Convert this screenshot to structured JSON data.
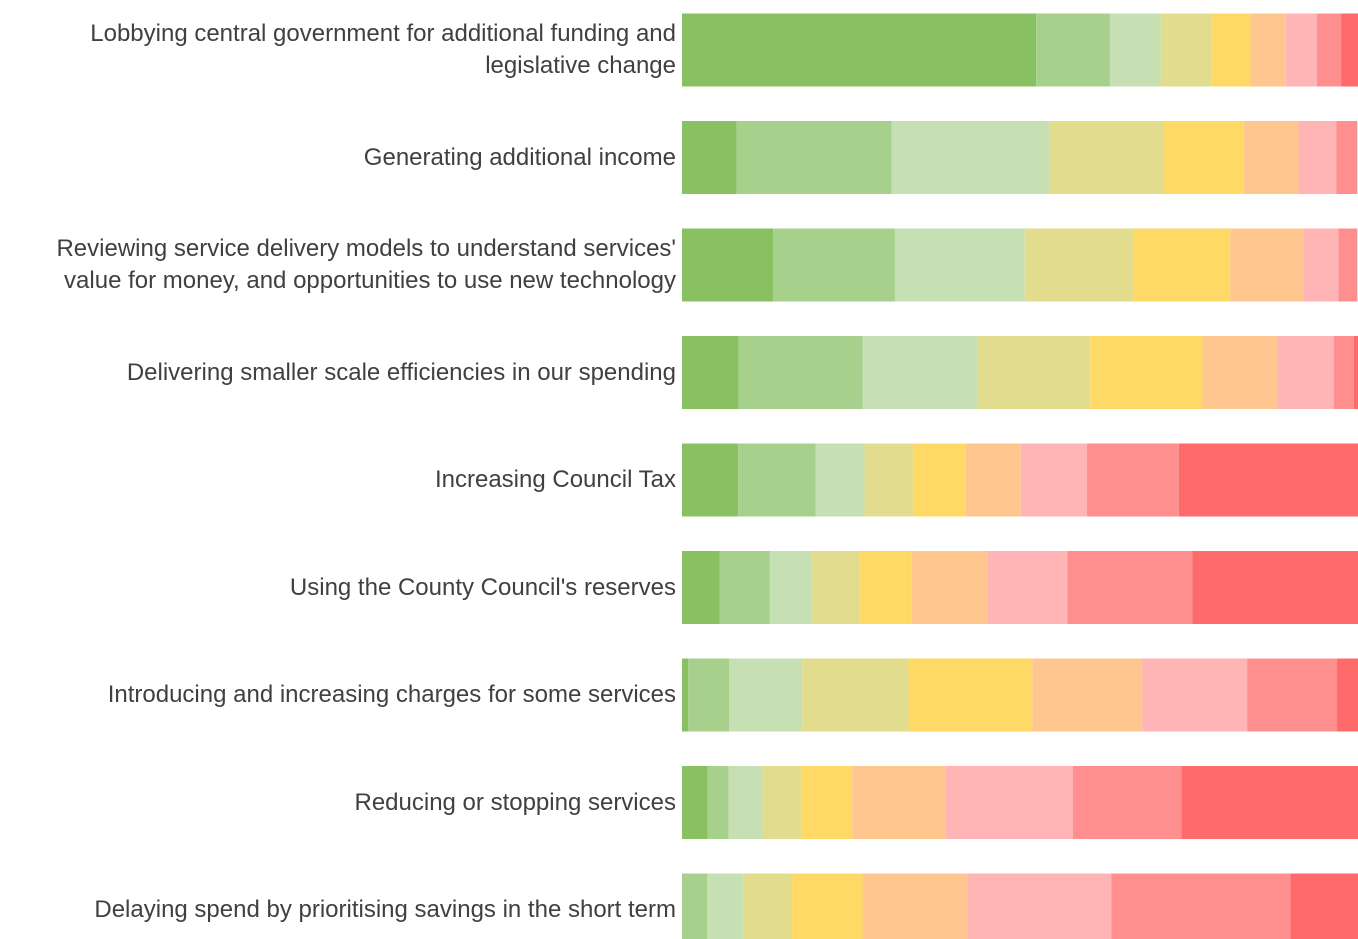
{
  "chart_data": {
    "type": "stacked_barh",
    "categories": [
      "Lobbying central government for additional funding and legislative change",
      "Generating additional income",
      "Reviewing service delivery models to understand services' value for money, and opportunities to use new technology",
      "Delivering smaller scale efficiencies in our spending",
      "Increasing Council Tax",
      "Using the County Council's reserves",
      "Introducing and increasing charges for some services",
      "Reducing or stopping services",
      "Delaying spend by prioritising savings in the short term"
    ],
    "xlim": [
      0,
      100
    ],
    "series": [
      {
        "color": "#88c062",
        "values": [
          52.4,
          8.1,
          13.5,
          8.4,
          8.3,
          5.6,
          0.9,
          3.8,
          0
        ]
      },
      {
        "color": "#a8d08d",
        "values": [
          10.9,
          22.9,
          18.0,
          18.3,
          11.5,
          7.4,
          6.1,
          3.1,
          3.7
        ]
      },
      {
        "color": "#c6e0b4",
        "values": [
          7.5,
          23.4,
          19.2,
          17.0,
          7.2,
          6.1,
          10.8,
          5.0,
          5.3
        ]
      },
      {
        "color": "#e2dc8e",
        "values": [
          7.5,
          16.9,
          16.1,
          16.7,
          7.2,
          7.1,
          15.7,
          5.8,
          7.2
        ]
      },
      {
        "color": "#ffd966",
        "values": [
          5.8,
          11.8,
          14.3,
          16.6,
          7.8,
          7.8,
          18.3,
          7.5,
          10.5
        ]
      },
      {
        "color": "#ffc78f",
        "values": [
          5.2,
          8.1,
          10.8,
          11.1,
          8.1,
          11.2,
          16.3,
          13.8,
          15.5
        ]
      },
      {
        "color": "#ffb5b5",
        "values": [
          4.6,
          5.6,
          5.2,
          8.3,
          9.8,
          11.8,
          15.5,
          18.8,
          21.3
        ]
      },
      {
        "color": "#ff8f8f",
        "values": [
          3.6,
          3.1,
          2.8,
          3.0,
          13.6,
          18.5,
          13.3,
          16.1,
          26.5
        ]
      },
      {
        "color": "#ff6b6b",
        "values": [
          2.5,
          0,
          0,
          0.6,
          26.5,
          24.5,
          3.1,
          26.1,
          10.0
        ]
      }
    ]
  }
}
